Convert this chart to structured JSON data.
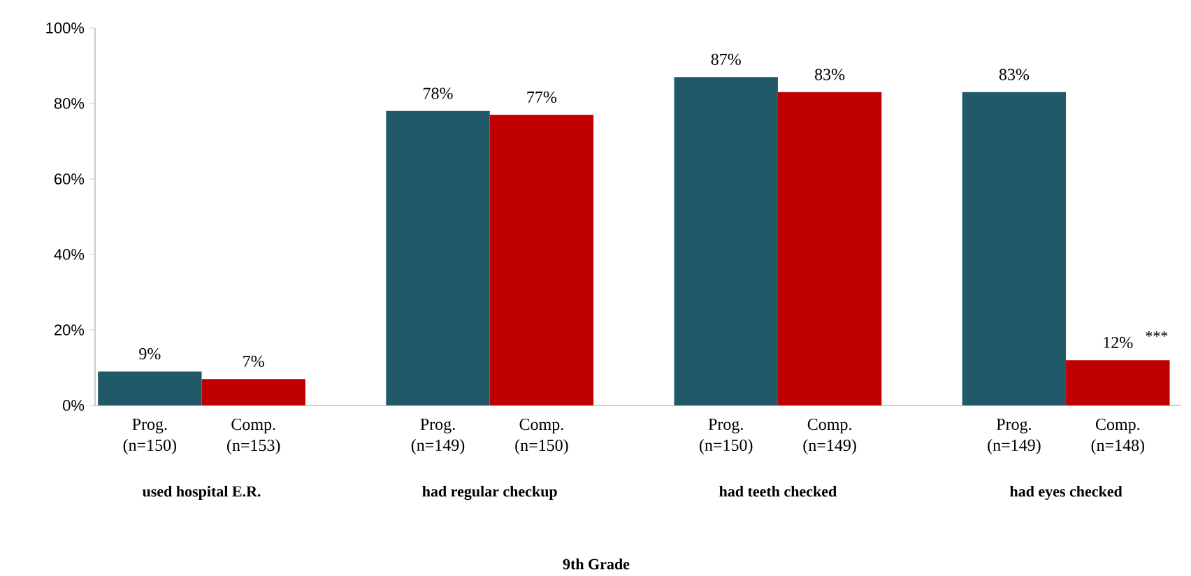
{
  "chart_data": {
    "type": "bar",
    "xlabel": "9th Grade",
    "categories": [
      "used hospital E.R.",
      "had regular checkup",
      "had teeth checked",
      "had eyes checked"
    ],
    "series": [
      {
        "name": "Prog.",
        "color": "#215968",
        "values": [
          9,
          78,
          87,
          83
        ],
        "value_labels": [
          "9%",
          "78%",
          "87%",
          "83%"
        ]
      },
      {
        "name": "Comp.",
        "color": "#c00000",
        "values": [
          7,
          77,
          83,
          12
        ],
        "value_labels": [
          "7%",
          "77%",
          "83%",
          "12%"
        ]
      }
    ],
    "ylim": [
      0,
      100
    ],
    "yticks": [
      {
        "value": 0,
        "label": "0%"
      },
      {
        "value": 20,
        "label": "20%"
      },
      {
        "value": 40,
        "label": "40%"
      },
      {
        "value": 60,
        "label": "60%"
      },
      {
        "value": 80,
        "label": "80%"
      },
      {
        "value": 100,
        "label": "100%"
      }
    ],
    "annotations": [
      "(n=150)",
      "(n=153)",
      "(n=149)",
      "(n=150)",
      "(n=150)",
      "(n=149)",
      "(n=149)",
      "(n=148)",
      "***"
    ]
  }
}
